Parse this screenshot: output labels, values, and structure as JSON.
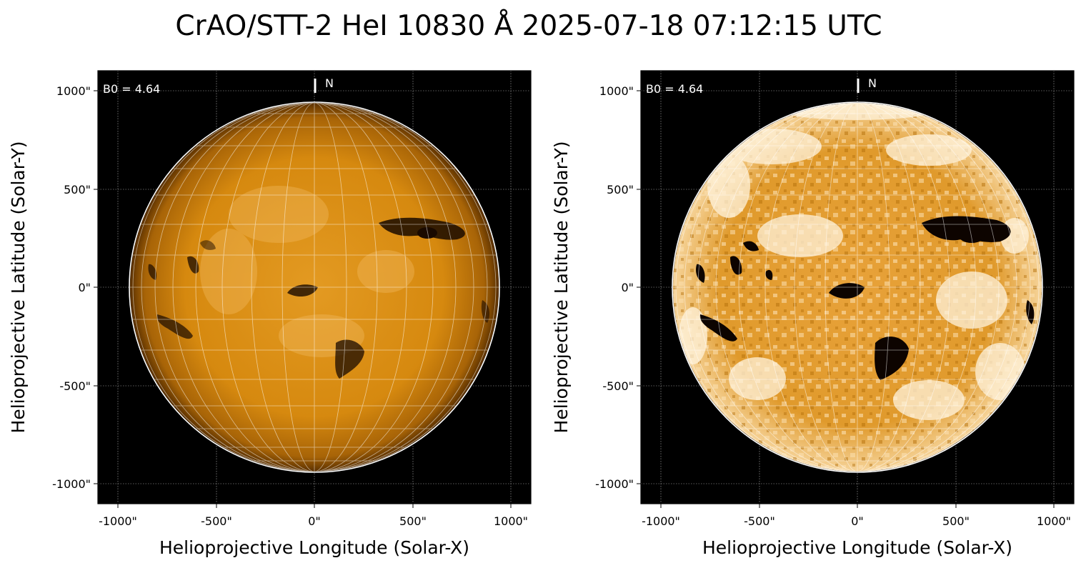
{
  "title": "CrAO/STT-2 HeI 10830 Å 2025-07-18 07:12:15 UTC",
  "colors": {
    "background": "#000000",
    "disk_base": "#d88a12",
    "disk_bright": "#ffd58a",
    "filament": "#120600",
    "grid_line": "#ffffff",
    "axis_grid": "#b0b0b0"
  },
  "panels": [
    {
      "id": "left",
      "variant": "normal",
      "b0_label": "B0 = 4.64",
      "north_label": "N",
      "xlabel": "Helioprojective Longitude (Solar-X)",
      "ylabel": "Helioprojective Latitude (Solar-Y)",
      "xticks": [
        "-1000\"",
        "-500\"",
        "0\"",
        "500\"",
        "1000\""
      ],
      "yticks": [
        "1000\"",
        "500\"",
        "0\"",
        "-500\"",
        "-1000\""
      ]
    },
    {
      "id": "right",
      "variant": "enhanced",
      "b0_label": "B0 = 4.64",
      "north_label": "N",
      "xlabel": "Helioprojective Longitude (Solar-X)",
      "ylabel": "Helioprojective Latitude (Solar-Y)",
      "xticks": [
        "-1000\"",
        "-500\"",
        "0\"",
        "500\"",
        "1000\""
      ],
      "yticks": [
        "1000\"",
        "500\"",
        "0\"",
        "-500\"",
        "-1000\""
      ]
    }
  ]
}
